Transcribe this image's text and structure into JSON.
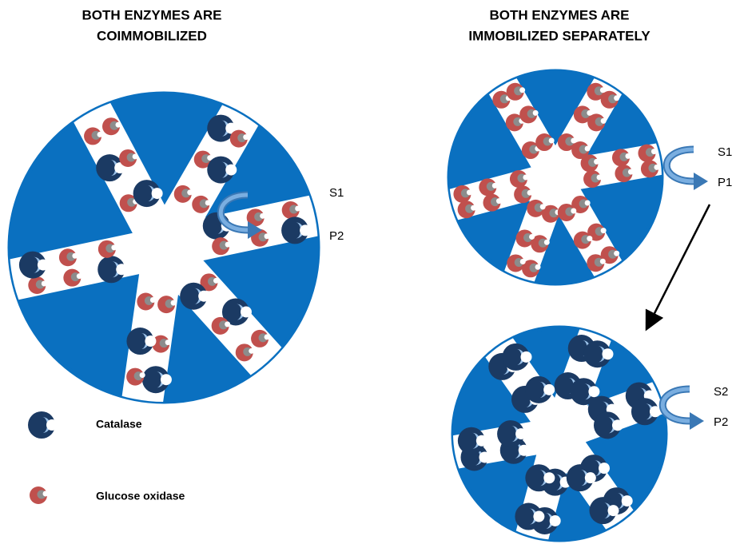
{
  "panels": [
    {
      "title": [
        "BOTH ENZYMES ARE",
        "COIMMOBILIZED"
      ],
      "particles": [
        {
          "substrate": "S1",
          "product": "P2"
        }
      ]
    },
    {
      "title": [
        "BOTH ENZYMES ARE",
        "IMMOBILIZED SEPARATELY"
      ],
      "particles": [
        {
          "substrate": "S1",
          "product": "P1"
        },
        {
          "substrate": "S2",
          "product": "P2"
        }
      ]
    }
  ],
  "legend": [
    {
      "label": "Catalase"
    },
    {
      "label": "Glucose oxidase"
    }
  ]
}
